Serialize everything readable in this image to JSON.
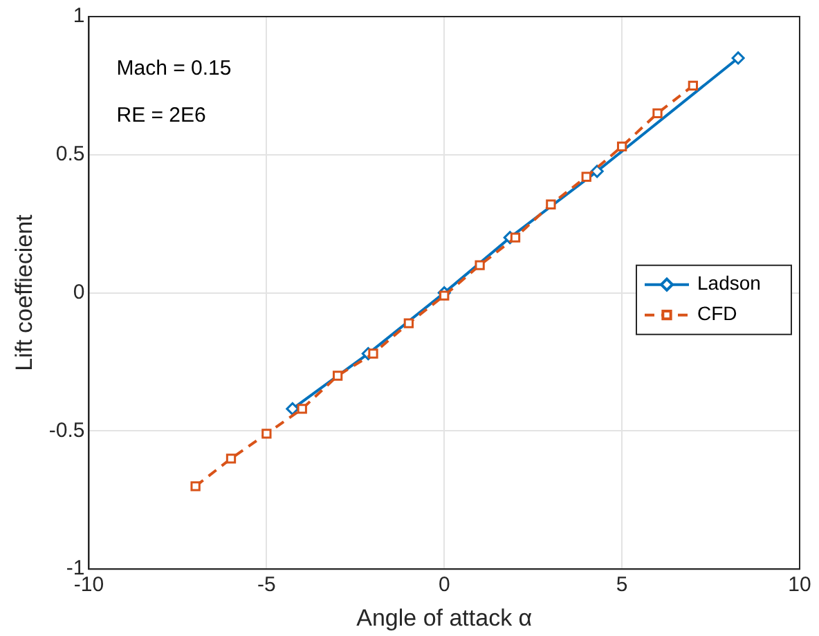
{
  "chart_data": {
    "type": "line",
    "xlabel": "Angle of attack α",
    "ylabel": "Lift coeffiecient",
    "xlim": [
      -10,
      10
    ],
    "xticks": [
      -10,
      -5,
      0,
      5,
      10
    ],
    "ylim": [
      -1,
      1
    ],
    "yticks": [
      -1,
      -0.5,
      0,
      0.5,
      1
    ],
    "grid": true,
    "legend": "right",
    "annotations": [
      "Mach = 0.15",
      "RE = 2E6"
    ],
    "series": [
      {
        "name": "Ladson",
        "color": "#0072bd",
        "marker": "diamond",
        "line_style": "solid",
        "x": [
          -4.27,
          -2.14,
          0,
          1.85,
          4.3,
          8.27
        ],
        "values": [
          -0.42,
          -0.22,
          0,
          0.2,
          0.44,
          0.85
        ]
      },
      {
        "name": "CFD",
        "color": "#d95319",
        "marker": "square",
        "line_style": "dashed",
        "x": [
          -7,
          -6,
          -5,
          -4,
          -3,
          -2,
          -1,
          0,
          1,
          2,
          3,
          4,
          5,
          6,
          7
        ],
        "values": [
          -0.7,
          -0.6,
          -0.51,
          -0.42,
          -0.3,
          -0.22,
          -0.11,
          -0.01,
          0.1,
          0.2,
          0.32,
          0.42,
          0.53,
          0.65,
          0.75
        ]
      }
    ]
  }
}
